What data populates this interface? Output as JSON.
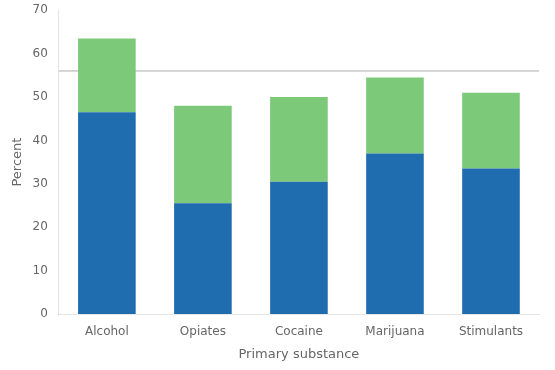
{
  "chart_data": {
    "type": "bar",
    "stacked": true,
    "xlabel": "Primary substance",
    "ylabel": "Percent",
    "categories": [
      "Alcohol",
      "Opiates",
      "Cocaine",
      "Marijuana",
      "Stimulants"
    ],
    "series": [
      {
        "color": "#1F6DAF",
        "values": [
          46.5,
          25.5,
          30.5,
          37.0,
          33.5
        ]
      },
      {
        "color": "#7DC97A",
        "values": [
          17.0,
          22.5,
          19.5,
          17.5,
          17.5
        ]
      }
    ],
    "reference_line": {
      "value": 56,
      "color": "#AAAAAA"
    },
    "ylim": [
      0,
      70
    ],
    "yticks": [
      0,
      10,
      20,
      30,
      40,
      50,
      60,
      70
    ],
    "grid": false
  }
}
